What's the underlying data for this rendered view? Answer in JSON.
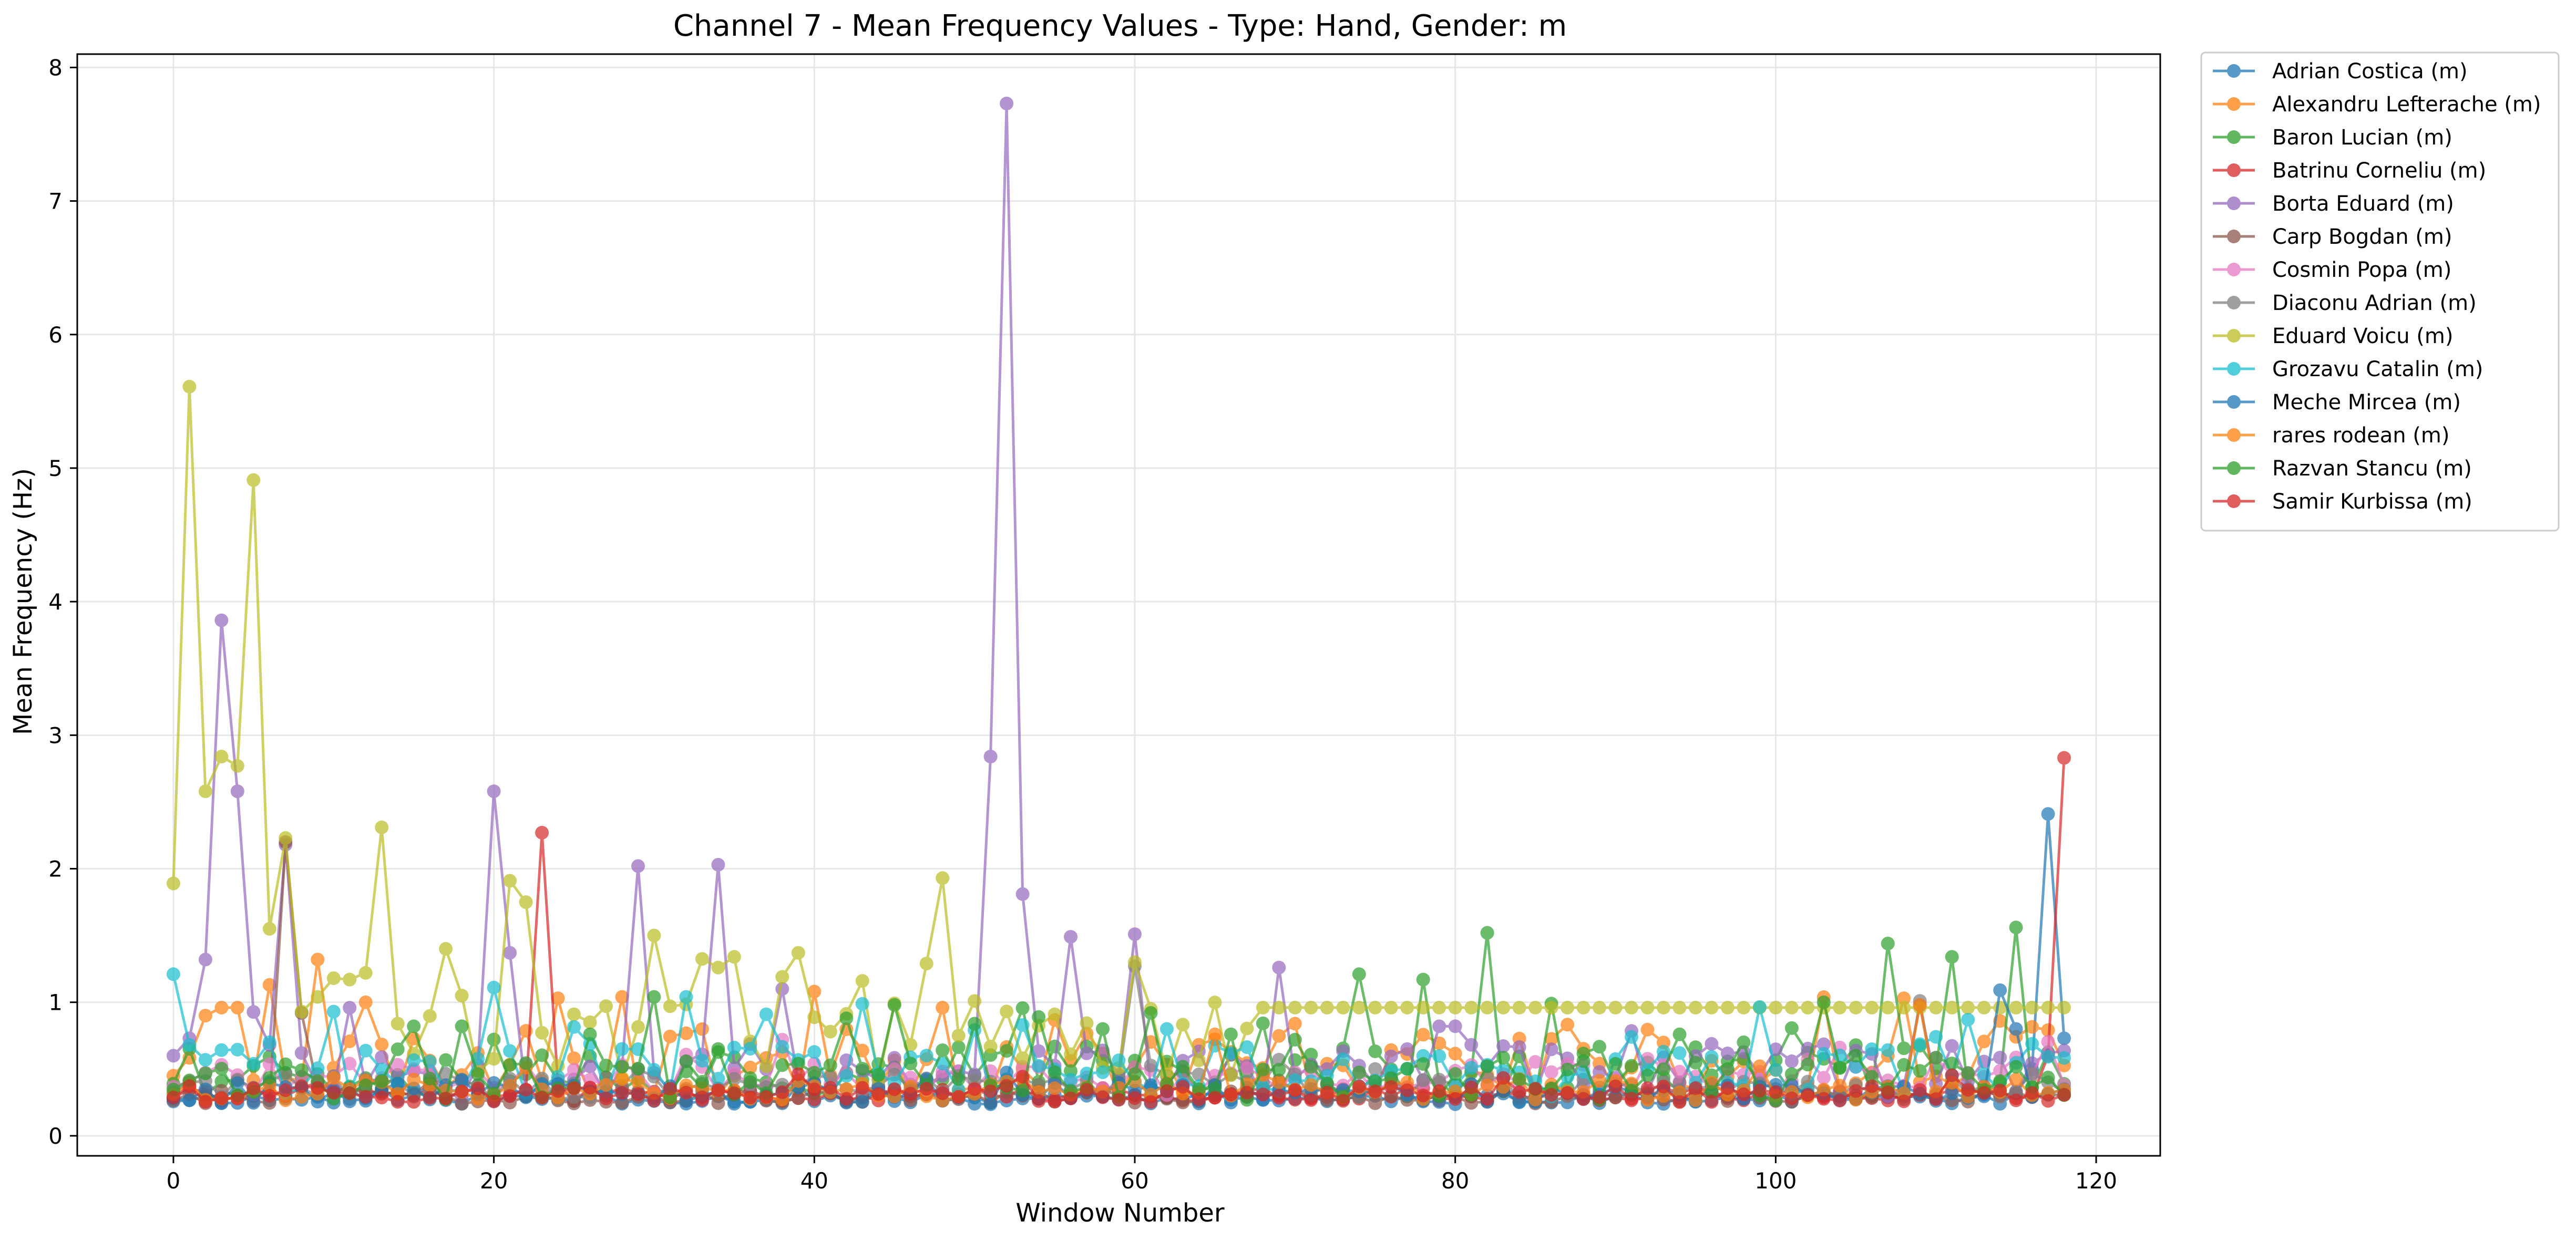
{
  "chart_data": {
    "type": "line",
    "title": "Channel 7 - Mean Frequency Values - Type: Hand, Gender: m",
    "xlabel": "Window Number",
    "ylabel": "Mean Frequency (Hz)",
    "xlim": [
      -6,
      124
    ],
    "ylim": [
      -0.15,
      8.1
    ],
    "xticks": [
      0,
      20,
      40,
      60,
      80,
      100,
      120
    ],
    "yticks": [
      0,
      1,
      2,
      3,
      4,
      5,
      6,
      7,
      8
    ],
    "grid": true,
    "legend_position": "outside-top-right",
    "n_points": 119,
    "series": [
      {
        "name": "Adrian Costica (m)",
        "color": "#1f77b4",
        "base": 0.27,
        "amp": 0.04,
        "seed": 11,
        "overrides": {
          "116": 0.5,
          "117": 2.41,
          "118": 0.73
        }
      },
      {
        "name": "Alexandru Lefterache (m)",
        "color": "#ff7f0e",
        "base": 0.5,
        "amp": 0.25,
        "seed": 23,
        "overrides": {
          "0": 0.45,
          "2": 0.9,
          "3": 0.96,
          "4": 0.96,
          "6": 1.13,
          "9": 1.32,
          "12": 1.0,
          "24": 1.03,
          "28": 1.04,
          "40": 1.08,
          "48": 0.96,
          "70": 0.84,
          "108": 1.03
        }
      },
      {
        "name": "Baron Lucian (m)",
        "color": "#2ca02c",
        "base": 0.45,
        "amp": 0.2,
        "seed": 37,
        "overrides": {
          "74": 1.21,
          "78": 1.17,
          "82": 1.52,
          "86": 0.99,
          "107": 1.44,
          "111": 1.34,
          "115": 1.56
        }
      },
      {
        "name": "Batrinu Corneliu (m)",
        "color": "#d62728",
        "base": 0.3,
        "amp": 0.05,
        "seed": 41,
        "overrides": {
          "23": 2.27,
          "117": 0.6,
          "118": 2.83
        }
      },
      {
        "name": "Borta Eduard (m)",
        "color": "#9467bd",
        "base": 0.45,
        "amp": 0.2,
        "seed": 53,
        "overrides": {
          "0": 0.6,
          "1": 0.73,
          "2": 1.32,
          "3": 3.86,
          "4": 2.58,
          "6": 0.68,
          "7": 2.18,
          "20": 2.58,
          "21": 1.37,
          "29": 2.02,
          "34": 2.03,
          "38": 1.1,
          "51": 2.84,
          "52": 7.73,
          "53": 1.81,
          "56": 1.49,
          "60": 1.51,
          "69": 1.26,
          "79": 0.82,
          "80": 0.82
        }
      },
      {
        "name": "Carp Bogdan (m)",
        "color": "#8c564b",
        "base": 0.28,
        "amp": 0.05,
        "seed": 67,
        "overrides": {
          "7": 2.2,
          "8": 0.92
        }
      },
      {
        "name": "Cosmin Popa (m)",
        "color": "#e377c2",
        "base": 0.4,
        "amp": 0.12,
        "seed": 71,
        "overrides": {}
      },
      {
        "name": "Diaconu Adrian (m)",
        "color": "#7f7f7f",
        "base": 0.35,
        "amp": 0.1,
        "seed": 83,
        "overrides": {
          "60": 1.27,
          "109": 1.01
        }
      },
      {
        "name": "Eduard Voicu (m)",
        "color": "#bcbd22",
        "base": 0.65,
        "amp": 0.3,
        "seed": 97,
        "plateau_from": 68,
        "plateau_value": 0.96,
        "overrides": {
          "0": 1.89,
          "1": 5.61,
          "2": 2.58,
          "3": 2.84,
          "4": 2.77,
          "5": 4.91,
          "6": 1.55,
          "7": 2.23,
          "8": 0.93,
          "9": 1.04,
          "10": 1.18,
          "11": 1.17,
          "12": 1.22,
          "13": 2.31,
          "14": 0.84,
          "17": 1.4,
          "18": 1.05,
          "21": 1.91,
          "22": 1.75,
          "25": 0.91,
          "26": 0.85,
          "30": 1.5,
          "31": 0.97,
          "34": 1.26,
          "35": 1.34,
          "38": 1.19,
          "39": 1.37,
          "43": 1.16,
          "47": 1.29,
          "48": 1.93,
          "49": 0.75,
          "55": 0.91,
          "60": 1.3
        }
      },
      {
        "name": "Grozavu Catalin (m)",
        "color": "#17becf",
        "base": 0.45,
        "amp": 0.2,
        "seed": 101,
        "overrides": {
          "0": 1.21,
          "10": 0.93,
          "20": 1.11,
          "32": 1.04,
          "37": 0.91,
          "53": 0.83,
          "62": 0.8,
          "91": 0.74,
          "112": 0.87
        }
      },
      {
        "name": "Meche Mircea (m)",
        "color": "#1f77b4",
        "base": 0.3,
        "amp": 0.08,
        "seed": 113,
        "overrides": {
          "114": 1.09,
          "115": 0.8
        }
      },
      {
        "name": "rares rodean (m)",
        "color": "#ff7f0e",
        "base": 0.33,
        "amp": 0.08,
        "seed": 127,
        "overrides": {
          "65": 0.76,
          "109": 0.98
        }
      },
      {
        "name": "Razvan Stancu (m)",
        "color": "#2ca02c",
        "base": 0.38,
        "amp": 0.15,
        "seed": 131,
        "overrides": {
          "15": 0.82,
          "18": 0.82,
          "26": 0.76,
          "30": 1.04,
          "42": 0.88,
          "45": 0.98,
          "50": 0.84,
          "54": 0.89,
          "58": 0.8,
          "61": 0.92,
          "66": 0.76,
          "70": 0.72,
          "98": 0.7,
          "103": 1.0,
          "105": 0.6
        }
      },
      {
        "name": "Samir Kurbissa (m)",
        "color": "#d62728",
        "base": 0.3,
        "amp": 0.06,
        "seed": 139,
        "overrides": {}
      }
    ]
  }
}
